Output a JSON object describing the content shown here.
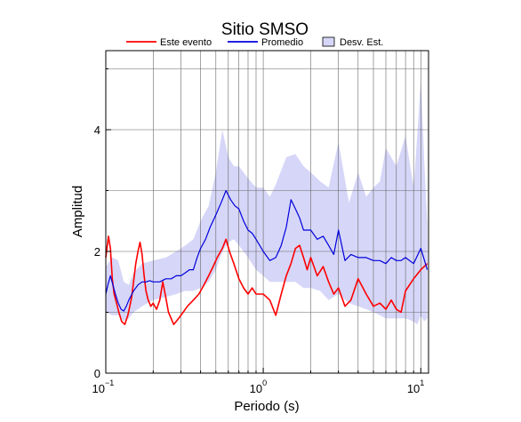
{
  "chart_data": {
    "type": "line",
    "title": "Sitio SMSO",
    "xlabel": "Periodo (s)",
    "ylabel": "Amplitud",
    "xscale": "log",
    "xlim": [
      0.1,
      11.2
    ],
    "ylim": [
      0,
      5.3
    ],
    "grid": true,
    "legend_placement": "top-center",
    "x_ticks": [
      {
        "value": 0.1,
        "base": "10",
        "exp": "−1"
      },
      {
        "value": 1,
        "base": "10",
        "exp": "0"
      },
      {
        "value": 10,
        "base": "10",
        "exp": "1"
      }
    ],
    "y_ticks": [
      {
        "value": 0,
        "label": "0"
      },
      {
        "value": 2,
        "label": "2"
      },
      {
        "value": 4,
        "label": "4"
      }
    ],
    "series": [
      {
        "name": "Este evento",
        "color": "#ff0000",
        "x": [
          0.1,
          0.104,
          0.107,
          0.11,
          0.113,
          0.117,
          0.121,
          0.126,
          0.132,
          0.138,
          0.142,
          0.146,
          0.15,
          0.155,
          0.16,
          0.165,
          0.17,
          0.175,
          0.18,
          0.186,
          0.193,
          0.2,
          0.21,
          0.22,
          0.23,
          0.24,
          0.25,
          0.27,
          0.29,
          0.31,
          0.33,
          0.36,
          0.39,
          0.42,
          0.45,
          0.48,
          0.51,
          0.55,
          0.58,
          0.61,
          0.65,
          0.7,
          0.75,
          0.8,
          0.85,
          0.9,
          1.0,
          1.1,
          1.2,
          1.3,
          1.4,
          1.5,
          1.6,
          1.7,
          1.8,
          1.9,
          2.0,
          2.2,
          2.4,
          2.6,
          2.8,
          3.0,
          3.3,
          3.6,
          4.0,
          4.5,
          5.0,
          5.5,
          6.0,
          6.5,
          7.0,
          7.5,
          8.0,
          9.0,
          10.0,
          11.0
        ],
        "y": [
          1.9,
          2.25,
          2.05,
          1.55,
          1.3,
          1.15,
          1.0,
          0.85,
          0.8,
          0.95,
          1.1,
          1.25,
          1.5,
          1.8,
          2.0,
          2.15,
          1.95,
          1.6,
          1.35,
          1.2,
          1.1,
          1.15,
          1.05,
          1.2,
          1.5,
          1.25,
          1.0,
          0.8,
          0.9,
          1.0,
          1.1,
          1.2,
          1.3,
          1.45,
          1.6,
          1.75,
          1.9,
          2.05,
          2.2,
          2.0,
          1.8,
          1.55,
          1.4,
          1.3,
          1.4,
          1.3,
          1.3,
          1.2,
          0.95,
          1.3,
          1.6,
          1.8,
          2.05,
          2.1,
          1.9,
          1.7,
          1.9,
          1.6,
          1.75,
          1.5,
          1.3,
          1.4,
          1.1,
          1.2,
          1.55,
          1.3,
          1.1,
          1.15,
          1.05,
          1.2,
          1.05,
          1.0,
          1.35,
          1.55,
          1.7,
          1.8
        ]
      },
      {
        "name": "Promedio",
        "color": "#0000dd",
        "x": [
          0.1,
          0.103,
          0.107,
          0.111,
          0.115,
          0.12,
          0.125,
          0.13,
          0.135,
          0.14,
          0.15,
          0.16,
          0.17,
          0.18,
          0.19,
          0.2,
          0.22,
          0.24,
          0.26,
          0.28,
          0.3,
          0.32,
          0.34,
          0.36,
          0.38,
          0.4,
          0.43,
          0.46,
          0.5,
          0.54,
          0.58,
          0.62,
          0.66,
          0.7,
          0.75,
          0.8,
          0.85,
          0.9,
          1.0,
          1.1,
          1.2,
          1.3,
          1.4,
          1.5,
          1.6,
          1.7,
          1.8,
          2.0,
          2.2,
          2.4,
          2.6,
          2.8,
          3.0,
          3.3,
          3.6,
          4.0,
          4.5,
          5.0,
          5.5,
          6.0,
          6.5,
          7.0,
          7.5,
          8.0,
          9.0,
          10.0,
          11.0
        ],
        "y": [
          1.3,
          1.45,
          1.6,
          1.45,
          1.3,
          1.15,
          1.05,
          1.02,
          1.1,
          1.2,
          1.35,
          1.45,
          1.5,
          1.5,
          1.52,
          1.5,
          1.5,
          1.55,
          1.55,
          1.6,
          1.6,
          1.65,
          1.7,
          1.7,
          1.9,
          2.05,
          2.2,
          2.4,
          2.6,
          2.8,
          3.0,
          2.85,
          2.75,
          2.7,
          2.5,
          2.35,
          2.3,
          2.2,
          2.0,
          1.85,
          1.9,
          2.1,
          2.4,
          2.85,
          2.7,
          2.55,
          2.35,
          2.35,
          2.2,
          2.25,
          2.1,
          1.95,
          2.35,
          1.85,
          1.95,
          1.9,
          1.9,
          1.85,
          1.85,
          1.8,
          1.9,
          1.85,
          1.85,
          1.9,
          1.8,
          2.05,
          1.7
        ]
      }
    ],
    "band": {
      "name": "Desv. Est.",
      "color": "#d6d6f8",
      "x": [
        0.1,
        0.11,
        0.12,
        0.13,
        0.14,
        0.15,
        0.17,
        0.2,
        0.24,
        0.28,
        0.32,
        0.36,
        0.4,
        0.45,
        0.5,
        0.55,
        0.6,
        0.65,
        0.7,
        0.8,
        0.9,
        1.0,
        1.1,
        1.2,
        1.4,
        1.6,
        1.8,
        2.0,
        2.3,
        2.6,
        3.0,
        3.5,
        4.0,
        4.5,
        5.0,
        5.5,
        6.0,
        7.0,
        8.0,
        9.0,
        9.5,
        10.0,
        10.5,
        11.0
      ],
      "upper": [
        1.75,
        1.9,
        1.85,
        1.5,
        1.45,
        1.65,
        1.8,
        1.85,
        1.9,
        2.0,
        2.1,
        2.2,
        2.5,
        2.75,
        3.3,
        4.0,
        3.55,
        3.4,
        3.4,
        3.2,
        3.05,
        3.05,
        2.9,
        3.1,
        3.55,
        3.6,
        3.4,
        3.3,
        3.15,
        3.05,
        3.8,
        2.8,
        3.3,
        2.9,
        3.05,
        3.15,
        3.7,
        3.4,
        3.9,
        3.05,
        3.9,
        4.85,
        3.55,
        2.45
      ],
      "lower": [
        1.0,
        0.95,
        0.95,
        0.85,
        0.9,
        1.0,
        1.1,
        1.2,
        1.25,
        1.3,
        1.35,
        1.35,
        1.4,
        1.5,
        1.7,
        2.0,
        2.15,
        2.2,
        2.1,
        1.9,
        1.7,
        1.6,
        1.5,
        1.5,
        1.5,
        1.5,
        1.4,
        1.4,
        1.35,
        1.2,
        1.3,
        1.15,
        1.1,
        1.05,
        1.0,
        0.95,
        0.9,
        0.9,
        0.9,
        0.85,
        0.8,
        0.95,
        0.85,
        0.9
      ]
    },
    "legend": [
      {
        "label": "Este evento",
        "kind": "line",
        "color": "#ff0000"
      },
      {
        "label": "Promedio",
        "kind": "line",
        "color": "#0000dd"
      },
      {
        "label": "Desv. Est.",
        "kind": "box",
        "color": "#d6d6f8"
      }
    ]
  }
}
